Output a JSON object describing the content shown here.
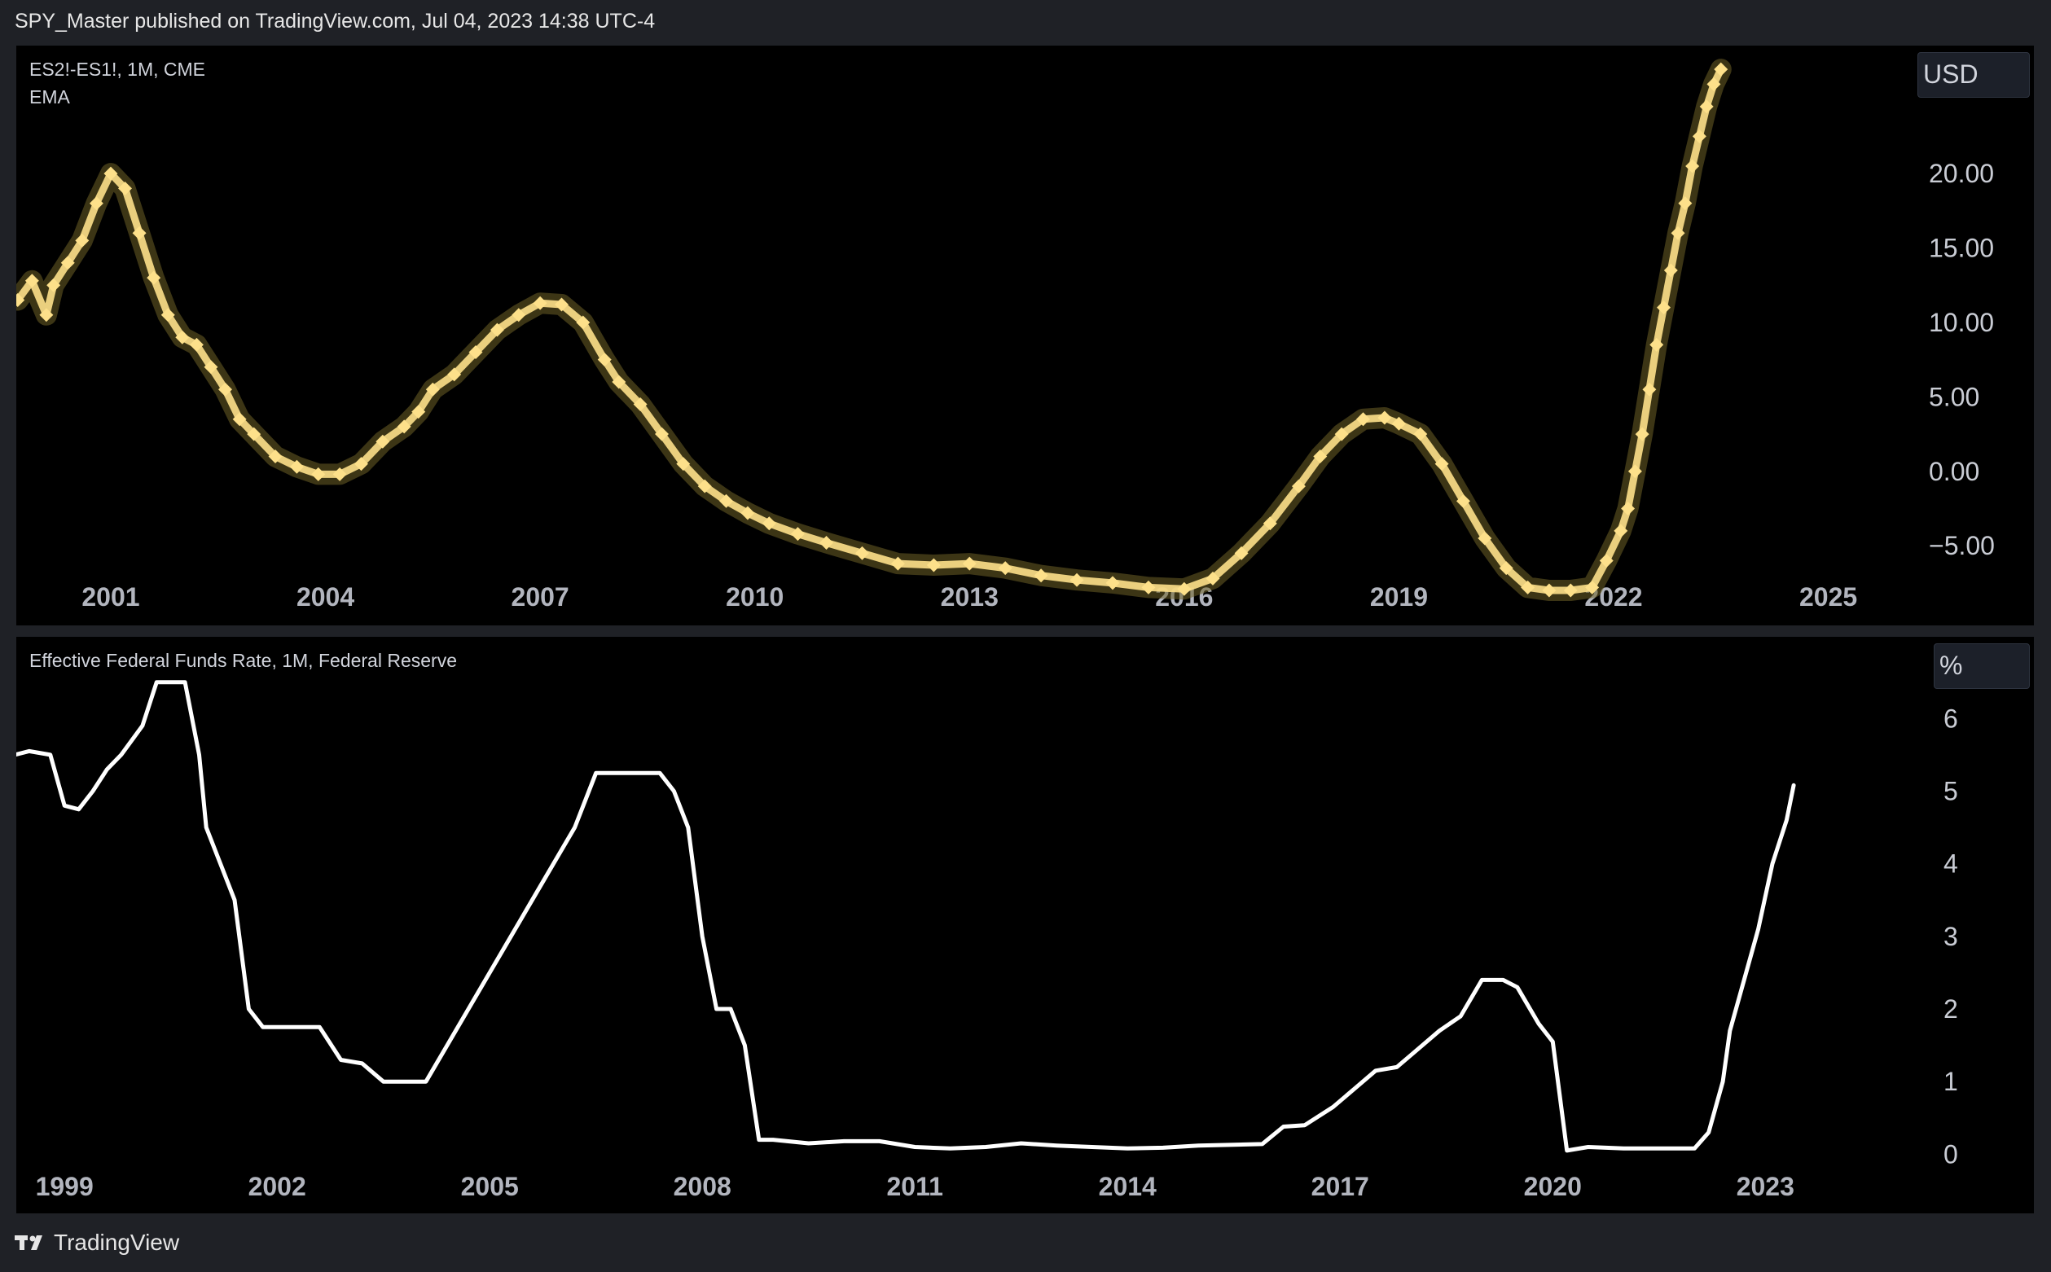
{
  "header": {
    "text": "SPY_Master published on TradingView.com, Jul 04, 2023 14:38 UTC-4"
  },
  "footer": {
    "brand": "TradingView",
    "logo_icon": "tradingview-logo-icon"
  },
  "colors": {
    "top_series": "#fde08a",
    "top_glow": "#6e6127",
    "bottom_series": "#ffffff",
    "axis_text": "#b2b5be",
    "pane_bg": "#000000",
    "frame_bg": "#1f2126"
  },
  "chart_data": [
    {
      "type": "line",
      "legend_lines": [
        "ES2!-ES1!, 1M, CME",
        "EMA"
      ],
      "unit": "USD",
      "x_tick_labels": [
        "2001",
        "2004",
        "2007",
        "2010",
        "2013",
        "2016",
        "2019",
        "2022",
        "2025"
      ],
      "x_ticks": [
        2001,
        2004,
        2007,
        2010,
        2013,
        2016,
        2019,
        2022,
        2025
      ],
      "y_tick_labels": [
        "20.00",
        "15.00",
        "10.00",
        "5.00",
        "0.00",
        "−5.00"
      ],
      "y_ticks": [
        20,
        15,
        10,
        5,
        0,
        -5
      ],
      "xlim": [
        1999.68,
        2026.2
      ],
      "ylim": [
        -8.6,
        27.5
      ],
      "series": [
        {
          "x": [
            1999.7,
            1999.9,
            2000.1,
            2000.2,
            2000.4,
            2000.6,
            2000.8,
            2001.0,
            2001.2,
            2001.4,
            2001.6,
            2001.8,
            2002.0,
            2002.2,
            2002.4,
            2002.6,
            2002.8,
            2003.0,
            2003.3,
            2003.6,
            2003.9,
            2004.2,
            2004.5,
            2004.8,
            2005.1,
            2005.3,
            2005.5,
            2005.8,
            2006.1,
            2006.4,
            2006.7,
            2007.0,
            2007.3,
            2007.6,
            2007.9,
            2008.1,
            2008.4,
            2008.7,
            2009.0,
            2009.3,
            2009.6,
            2009.9,
            2010.2,
            2010.6,
            2011.0,
            2011.5,
            2012.0,
            2012.5,
            2013.0,
            2013.5,
            2014.0,
            2014.5,
            2015.0,
            2015.5,
            2016.0,
            2016.4,
            2016.8,
            2017.2,
            2017.6,
            2017.9,
            2018.2,
            2018.5,
            2018.8,
            2019.0,
            2019.3,
            2019.6,
            2019.9,
            2020.2,
            2020.5,
            2020.8,
            2021.1,
            2021.4,
            2021.7,
            2021.9,
            2022.1,
            2022.2,
            2022.3,
            2022.4,
            2022.5,
            2022.6,
            2022.7,
            2022.8,
            2022.9,
            2023.0,
            2023.1,
            2023.2,
            2023.3,
            2023.4,
            2023.5
          ],
          "y": [
            11.5,
            12.8,
            10.5,
            12.5,
            14.0,
            15.5,
            18.0,
            20.0,
            19.0,
            16.0,
            13.0,
            10.5,
            9.0,
            8.5,
            7.0,
            5.5,
            3.5,
            2.5,
            1.0,
            0.3,
            -0.2,
            -0.2,
            0.5,
            2.0,
            3.0,
            4.0,
            5.5,
            6.5,
            8.0,
            9.5,
            10.5,
            11.3,
            11.2,
            10.0,
            7.5,
            6.0,
            4.5,
            2.5,
            0.5,
            -1.0,
            -2.0,
            -2.8,
            -3.5,
            -4.2,
            -4.8,
            -5.5,
            -6.2,
            -6.3,
            -6.2,
            -6.5,
            -7.0,
            -7.3,
            -7.5,
            -7.8,
            -7.9,
            -7.2,
            -5.5,
            -3.5,
            -1.0,
            1.0,
            2.5,
            3.5,
            3.6,
            3.2,
            2.5,
            0.5,
            -2.0,
            -4.5,
            -6.5,
            -7.8,
            -8.0,
            -8.0,
            -7.8,
            -6.0,
            -4.0,
            -2.5,
            0.0,
            2.5,
            5.5,
            8.5,
            11.0,
            13.5,
            16.0,
            18.0,
            20.5,
            22.5,
            24.5,
            26.0,
            27.0
          ]
        }
      ]
    },
    {
      "type": "line",
      "legend_lines": [
        "Effective Federal Funds Rate, 1M, Federal Reserve"
      ],
      "unit": "%",
      "x_tick_labels": [
        "1999",
        "2002",
        "2005",
        "2008",
        "2011",
        "2014",
        "2017",
        "2020",
        "2023"
      ],
      "x_ticks": [
        1999,
        2002,
        2005,
        2008,
        2011,
        2014,
        2017,
        2020,
        2023
      ],
      "y_tick_labels": [
        "6",
        "5",
        "4",
        "3",
        "2",
        "1",
        "0"
      ],
      "y_ticks": [
        6,
        5,
        4,
        3,
        2,
        1,
        0
      ],
      "xlim": [
        1998.32,
        2025.1
      ],
      "ylim": [
        -0.5,
        6.9
      ],
      "series": [
        {
          "x": [
            1998.3,
            1998.5,
            1998.8,
            1999.0,
            1999.2,
            1999.4,
            1999.6,
            1999.8,
            2000.1,
            2000.3,
            2000.5,
            2000.7,
            2000.9,
            2001.0,
            2001.2,
            2001.4,
            2001.6,
            2001.8,
            2002.0,
            2002.3,
            2002.6,
            2002.9,
            2003.2,
            2003.5,
            2003.8,
            2004.1,
            2004.4,
            2004.7,
            2005.0,
            2005.3,
            2005.6,
            2005.9,
            2006.2,
            2006.5,
            2006.8,
            2007.1,
            2007.4,
            2007.6,
            2007.8,
            2008.0,
            2008.2,
            2008.4,
            2008.6,
            2008.8,
            2009.0,
            2009.5,
            2010.0,
            2010.5,
            2011.0,
            2011.5,
            2012.0,
            2012.5,
            2013.0,
            2013.5,
            2014.0,
            2014.5,
            2015.0,
            2015.5,
            2015.9,
            2016.2,
            2016.5,
            2016.9,
            2017.2,
            2017.5,
            2017.8,
            2018.1,
            2018.4,
            2018.7,
            2019.0,
            2019.3,
            2019.5,
            2019.8,
            2020.0,
            2020.2,
            2020.5,
            2021.0,
            2021.5,
            2022.0,
            2022.2,
            2022.4,
            2022.5,
            2022.7,
            2022.9,
            2023.1,
            2023.3,
            2023.4
          ],
          "y": [
            5.5,
            5.55,
            5.5,
            4.8,
            4.75,
            5.0,
            5.3,
            5.5,
            5.9,
            6.5,
            6.5,
            6.5,
            5.5,
            4.5,
            4.0,
            3.5,
            2.0,
            1.75,
            1.75,
            1.75,
            1.75,
            1.3,
            1.25,
            1.0,
            1.0,
            1.0,
            1.5,
            2.0,
            2.5,
            3.0,
            3.5,
            4.0,
            4.5,
            5.25,
            5.25,
            5.25,
            5.25,
            5.0,
            4.5,
            3.0,
            2.0,
            2.0,
            1.5,
            0.2,
            0.2,
            0.15,
            0.18,
            0.18,
            0.1,
            0.08,
            0.1,
            0.15,
            0.12,
            0.1,
            0.08,
            0.09,
            0.12,
            0.13,
            0.14,
            0.38,
            0.4,
            0.65,
            0.9,
            1.15,
            1.2,
            1.45,
            1.7,
            1.9,
            2.4,
            2.4,
            2.3,
            1.8,
            1.55,
            0.05,
            0.1,
            0.08,
            0.08,
            0.08,
            0.3,
            1.0,
            1.7,
            2.4,
            3.1,
            4.0,
            4.6,
            5.08
          ]
        }
      ]
    }
  ]
}
